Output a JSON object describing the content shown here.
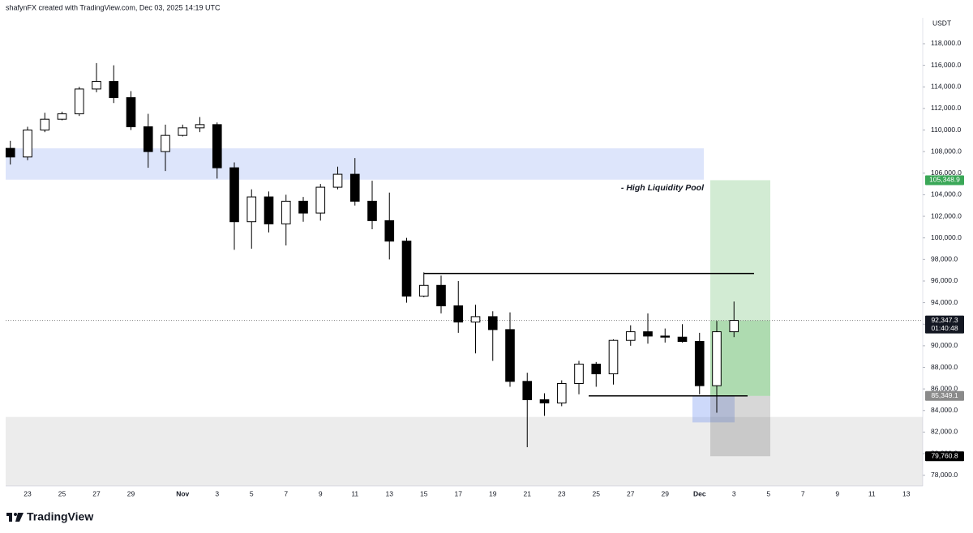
{
  "header": "shafynFX created with TradingView.com, Dec 03, 2025 14:19 UTC",
  "brand": "TradingView",
  "chart_data": {
    "type": "candlestick",
    "unit": "USDT",
    "categories": [
      null,
      "23",
      null,
      "25",
      null,
      "27",
      null,
      "29",
      null,
      null,
      "Nov",
      null,
      "3",
      null,
      "5",
      null,
      "7",
      null,
      "9",
      null,
      "11",
      null,
      "13",
      null,
      "15",
      null,
      "17",
      null,
      "19",
      null,
      "21",
      null,
      "23",
      null,
      "25",
      null,
      "27",
      null,
      "29",
      null,
      "Dec",
      null,
      "3",
      null,
      "5",
      null,
      "7",
      null,
      "9",
      null,
      "11",
      null,
      "13"
    ],
    "open": [
      108300,
      107500,
      110000,
      111000,
      111500,
      113800,
      114500,
      113000,
      110300,
      108000,
      109500,
      110200,
      110500,
      106500,
      101500,
      103800,
      101300,
      103400,
      102300,
      104700,
      105900,
      103400,
      101600,
      99700,
      94600,
      95600,
      93700,
      92200,
      92700,
      91500,
      86700,
      85000,
      84700,
      86500,
      88300,
      87400,
      90500,
      91300,
      90900,
      90800,
      90400,
      86300,
      91300,
      null,
      null,
      null,
      null,
      null,
      null,
      null,
      null,
      null,
      null
    ],
    "high": [
      109000,
      110300,
      111600,
      111700,
      114000,
      116200,
      116000,
      113600,
      111500,
      110500,
      110500,
      111200,
      110700,
      107000,
      104500,
      104300,
      104000,
      103800,
      105000,
      106600,
      107400,
      105300,
      104200,
      100000,
      96800,
      96500,
      96000,
      93800,
      93200,
      93100,
      87500,
      85600,
      86800,
      88600,
      88500,
      90600,
      91900,
      93000,
      91600,
      92000,
      91200,
      92300,
      94100,
      null,
      null,
      null,
      null,
      null,
      null,
      null,
      null,
      null,
      null
    ],
    "low": [
      106800,
      107200,
      109800,
      110900,
      111300,
      113500,
      112500,
      110000,
      106500,
      106200,
      109400,
      109800,
      105500,
      98900,
      99000,
      100500,
      99300,
      101500,
      101600,
      104500,
      103000,
      100800,
      98000,
      94000,
      94500,
      93000,
      91200,
      89300,
      88600,
      86200,
      80600,
      83500,
      84400,
      85500,
      86200,
      86400,
      90000,
      90200,
      90300,
      90300,
      85500,
      83800,
      90800,
      null,
      null,
      null,
      null,
      null,
      null,
      null,
      null,
      null,
      null
    ],
    "close": [
      107500,
      110000,
      111000,
      111500,
      113800,
      114500,
      113000,
      110300,
      108000,
      109500,
      110200,
      110500,
      106500,
      101500,
      103800,
      101300,
      103400,
      102300,
      104700,
      105900,
      103400,
      101600,
      99700,
      94600,
      95600,
      93700,
      92200,
      92700,
      91500,
      86700,
      85000,
      84700,
      86500,
      88300,
      87400,
      90500,
      91300,
      90900,
      90800,
      90400,
      86300,
      91300,
      92347.3,
      null,
      null,
      null,
      null,
      null,
      null,
      null,
      null,
      null,
      null
    ],
    "up_color": "#ffffff",
    "down_color": "#000000",
    "ylim": [
      77000,
      120400
    ],
    "yticks": [
      {
        "value": 78000,
        "label": "78,000.0"
      },
      {
        "value": 80000,
        "label": "80,000.0"
      },
      {
        "value": 82000,
        "label": "82,000.0"
      },
      {
        "value": 84000,
        "label": "84,000.0"
      },
      {
        "value": 86000,
        "label": "86,000.0"
      },
      {
        "value": 88000,
        "label": "88,000.0"
      },
      {
        "value": 90000,
        "label": "90,000.0"
      },
      {
        "value": 92000,
        "label": "92,000.0"
      },
      {
        "value": 94000,
        "label": "94,000.0"
      },
      {
        "value": 96000,
        "label": "96,000.0"
      },
      {
        "value": 98000,
        "label": "98,000.0"
      },
      {
        "value": 100000,
        "label": "100,000.0"
      },
      {
        "value": 102000,
        "label": "102,000.0"
      },
      {
        "value": 104000,
        "label": "104,000.0"
      },
      {
        "value": 106000,
        "label": "106,000.0"
      },
      {
        "value": 108000,
        "label": "108,000.0"
      },
      {
        "value": 110000,
        "label": "110,000.0"
      },
      {
        "value": 112000,
        "label": "112,000.0"
      },
      {
        "value": 114000,
        "label": "114,000.0"
      },
      {
        "value": 116000,
        "label": "116,000.0"
      },
      {
        "value": 118000,
        "label": "118,000.0"
      }
    ],
    "zones": [
      {
        "from": 105400,
        "to": 108300,
        "color": "rgba(120,150,240,0.25)"
      },
      {
        "from": 77000,
        "to": 83400,
        "color": "rgba(160,160,160,0.2)"
      },
      {
        "from": 82900,
        "to": 85349.1,
        "color": "rgba(90,130,240,0.3)"
      }
    ],
    "levels": [
      {
        "value": 96700,
        "color": "#000000"
      },
      {
        "value": 85349.1,
        "color": "#000000"
      }
    ],
    "position": {
      "target": 105348.9,
      "current": 92347.3,
      "entry": 85349.1,
      "stop": 79760.8
    },
    "annotation": "- High Liquidity Pool",
    "price_labels": [
      {
        "value": 105348.9,
        "label": "105,348.9",
        "color": "#3aa757"
      },
      {
        "value": 92347.3,
        "label": "92,347.3",
        "color": "#131722",
        "countdown": "01:40:48"
      },
      {
        "value": 85349.1,
        "label": "85,349.1",
        "color": "#8a8a8a"
      },
      {
        "value": 79760.8,
        "label": "79,760.8",
        "color": "#000000"
      }
    ]
  }
}
